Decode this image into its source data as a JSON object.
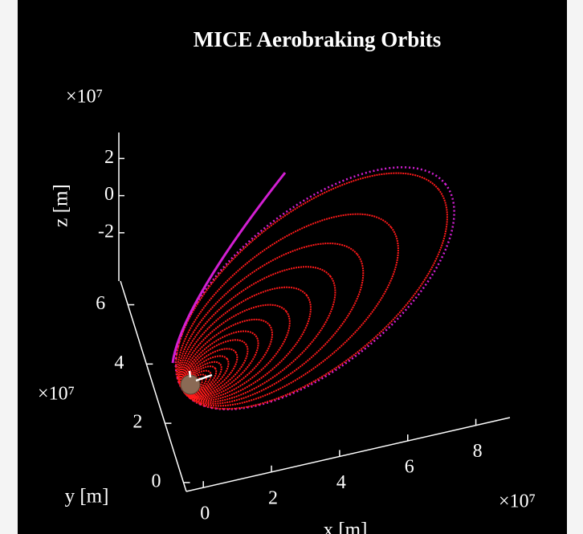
{
  "chart_data": {
    "type": "orbit3d",
    "title": "MICE Aerobraking Orbits",
    "xlabel": "x [m]",
    "ylabel": "y [m]",
    "zlabel": "z [m]",
    "x_exponent": "×10⁷",
    "y_exponent": "×10⁷",
    "z_exponent": "×10⁷",
    "xlim": [
      -0.5,
      9
    ],
    "xticks": [
      0,
      2,
      4,
      6,
      8
    ],
    "ylim": [
      -0.3,
      6.8
    ],
    "yticks": [
      0,
      2,
      4,
      6
    ],
    "zlim": [
      -4.6,
      3.4
    ],
    "zticks": [
      -2,
      0,
      2
    ],
    "capture_orbit": {
      "color": "#d21fd2",
      "apoapsis": 7.7
    },
    "orbits": {
      "color": "#ff1a1a",
      "apoapsis": [
        7.5,
        6.1,
        5.1,
        4.3,
        3.6,
        3.0,
        2.5,
        2.1,
        1.8,
        1.5,
        1.25,
        1.05,
        0.9,
        0.75,
        0.62,
        0.5
      ]
    }
  }
}
